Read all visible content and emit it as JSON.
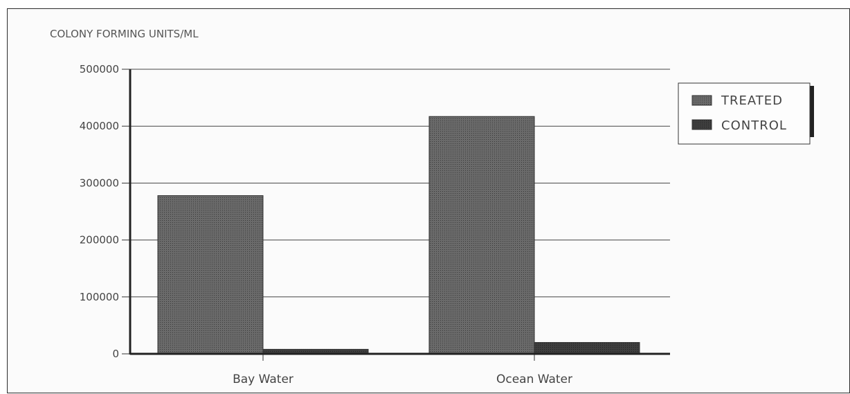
{
  "chart_data": {
    "type": "bar",
    "title": "COLONY FORMING UNITS/ML",
    "categories": [
      "Bay Water",
      "Ocean Water"
    ],
    "series": [
      {
        "name": "TREATED",
        "values": [
          278000,
          417000
        ]
      },
      {
        "name": "CONTROL",
        "values": [
          8000,
          20000
        ]
      }
    ],
    "ylim": [
      0,
      500000
    ],
    "yticks": [
      0,
      100000,
      200000,
      300000,
      400000,
      500000
    ],
    "ytick_labels": [
      "0",
      "100000",
      "200000",
      "300000",
      "400000",
      "500000"
    ],
    "grid": true,
    "legend_position": "top-right",
    "colors": {
      "treated": "#555555",
      "control": "#333333",
      "grid": "#444444"
    }
  }
}
